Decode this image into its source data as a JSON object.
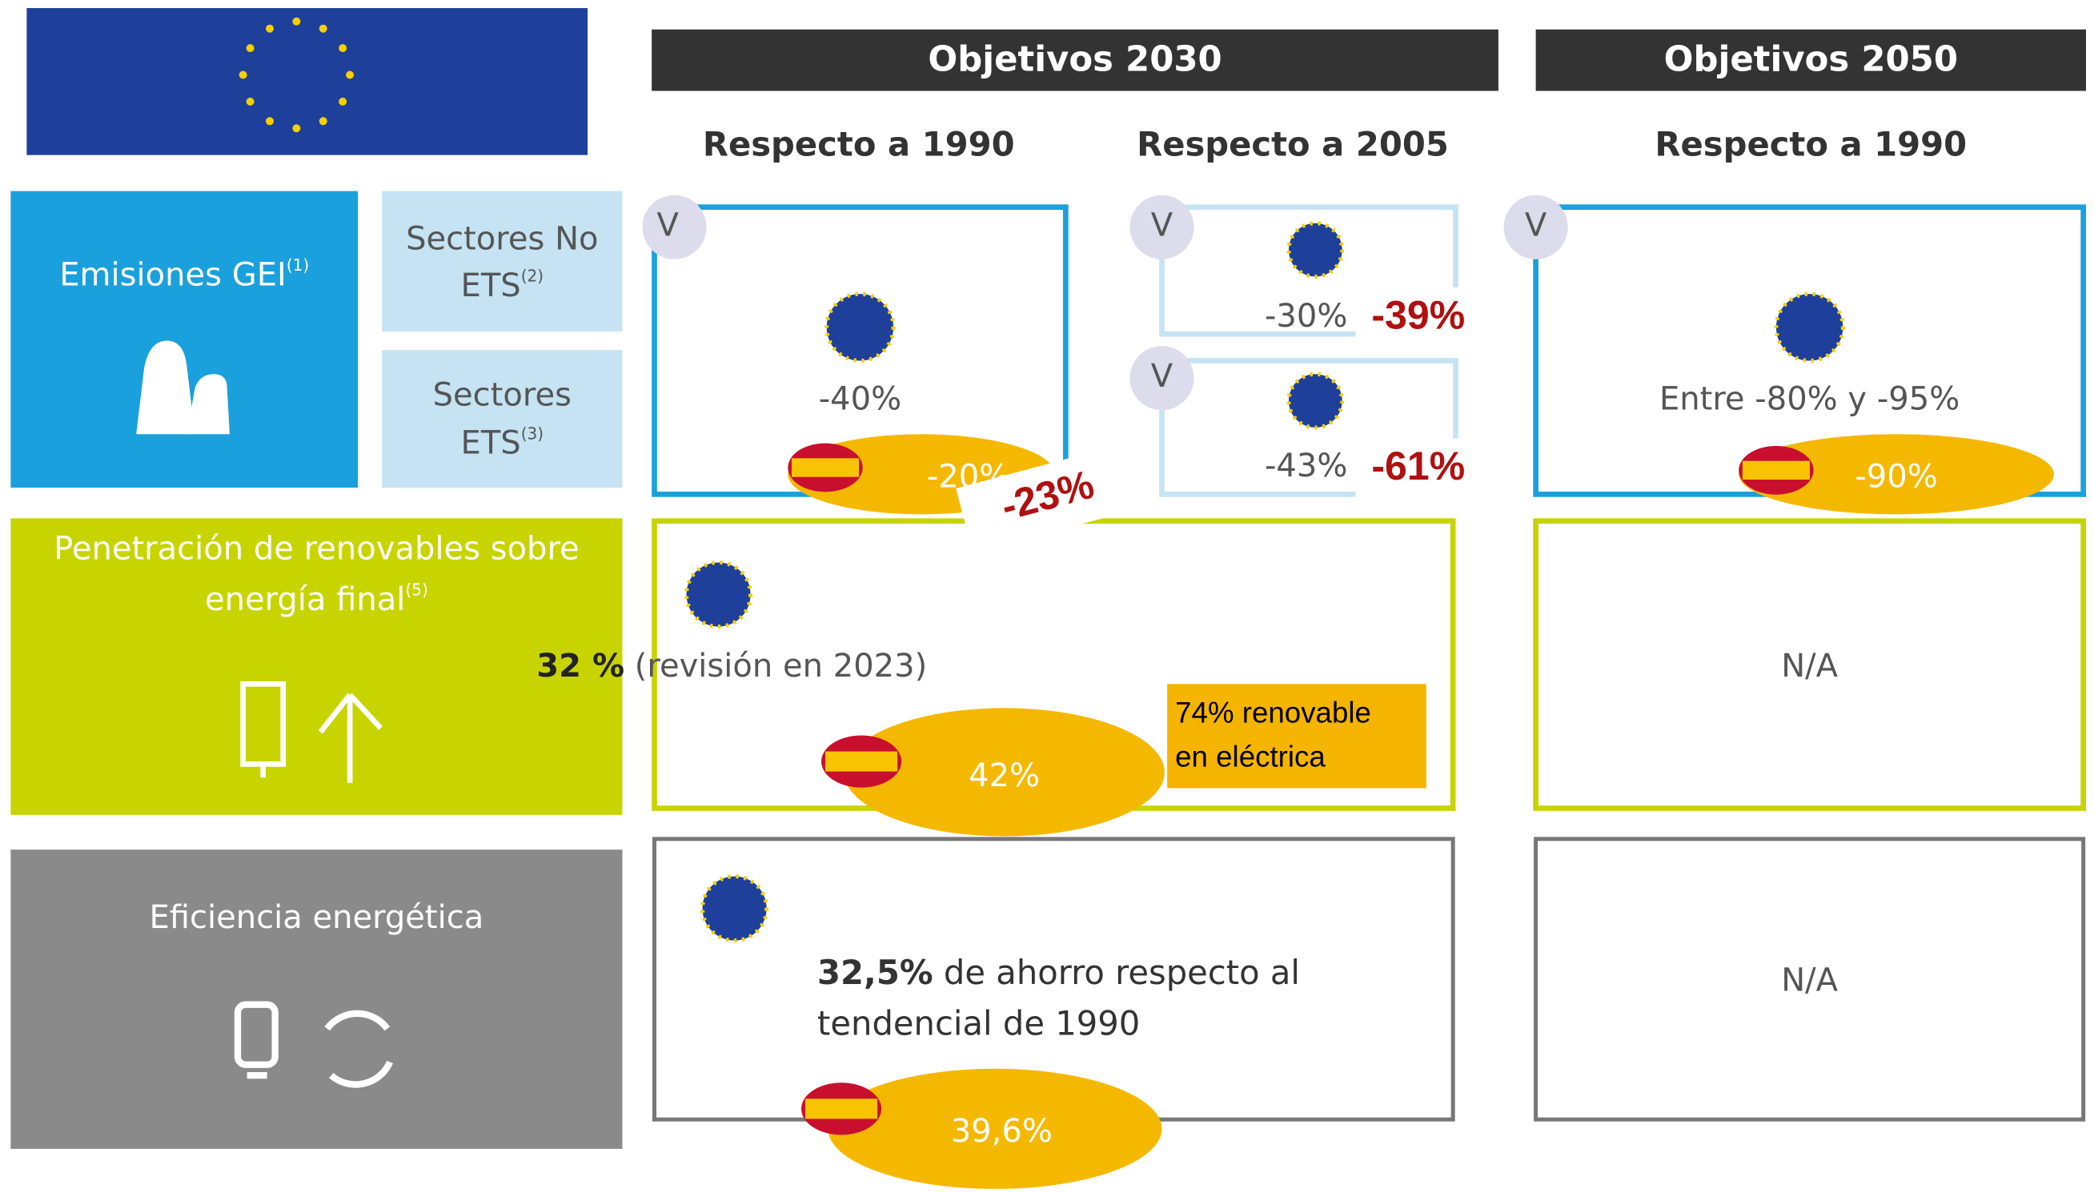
{
  "header": {
    "col_2030": "Objetivos 2030",
    "col_2050": "Objetivos 2050",
    "sub_2030_1990": "Respecto a 1990",
    "sub_2030_2005": "Respecto a 2005",
    "sub_2050_1990": "Respecto a 1990"
  },
  "rows": {
    "emisiones": {
      "label": "Emisiones GEI",
      "note": "(1)",
      "no_ets": "Sectores No",
      "no_ets_2": "ETS",
      "no_ets_note": "(2)",
      "ets": "Sectores",
      "ets_2": "ETS",
      "ets_note": "(3)",
      "v": "V",
      "eu_2030_1990": "-40%",
      "es_2030_1990": "-20%",
      "es_2030_1990_new": "-23%",
      "eu_2005_no_ets": "-30%",
      "es_2005_no_ets": "-39%",
      "eu_2005_ets": "-43%",
      "es_2005_ets": "-61%",
      "eu_2050": "Entre -80% y -95%",
      "es_2050": "-90%"
    },
    "renovables": {
      "label_1": "Penetración de renovables sobre",
      "label_2": "energía final",
      "note": "(5)",
      "eu_2030": "32 %",
      "eu_2030_note": "(revisión en 2023)",
      "es_2030": "42%",
      "electric_1": "74%  renovable",
      "electric_2": "en eléctrica",
      "eu_2050": "N/A"
    },
    "eficiencia": {
      "label": "Eficiencia energética",
      "eu_2030": "32,5%",
      "eu_2030_rest": " de ahorro respecto al",
      "eu_2030_line2": "tendencial de 1990",
      "es_2030": "39,6%",
      "eu_2050": "N/A"
    }
  }
}
